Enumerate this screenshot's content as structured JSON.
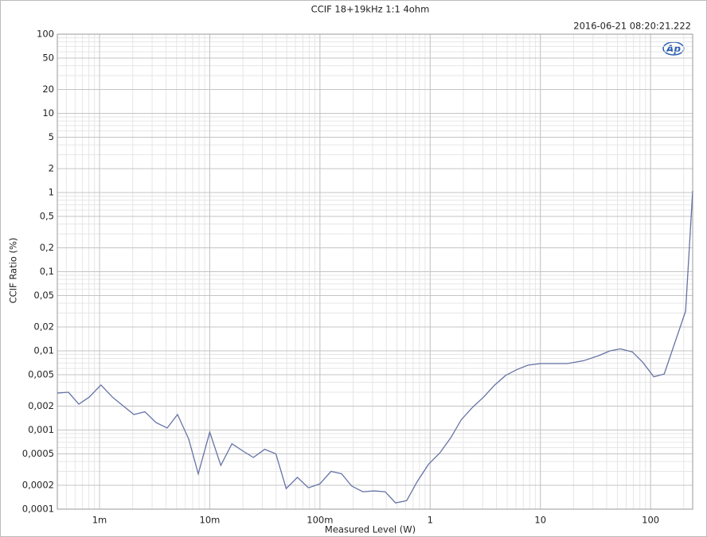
{
  "chart_data": {
    "type": "line",
    "title": "CCIF 18+19kHz 1:1 4ohm",
    "subtitle": "2016-06-21 08:20:21.222",
    "logo": "Ap",
    "x_label": "Measured Level (W)",
    "y_label": "CCIF Ratio (%)",
    "x_log": true,
    "y_log": true,
    "grid": true,
    "xlim": [
      0.000414,
      241
    ],
    "ylim": [
      0.0001,
      100
    ],
    "xticks": [
      {
        "value": 0.001,
        "label": "1m"
      },
      {
        "value": 0.01,
        "label": "10m"
      },
      {
        "value": 0.1,
        "label": "100m"
      },
      1,
      10,
      100
    ],
    "yticks": [
      100,
      50,
      20,
      10,
      5,
      2,
      1,
      {
        "value": 0.5,
        "label": "0,5"
      },
      {
        "value": 0.2,
        "label": "0,2"
      },
      {
        "value": 0.1,
        "label": "0,1"
      },
      {
        "value": 0.05,
        "label": "0,05"
      },
      {
        "value": 0.02,
        "label": "0,02"
      },
      {
        "value": 0.01,
        "label": "0,01"
      },
      {
        "value": 0.005,
        "label": "0,005"
      },
      {
        "value": 0.002,
        "label": "0,002"
      },
      {
        "value": 0.001,
        "label": "0,001"
      },
      {
        "value": 0.0005,
        "label": "0,0005"
      },
      {
        "value": 0.0002,
        "label": "0,0002"
      },
      {
        "value": 0.0001,
        "label": "0,0001"
      }
    ],
    "series": [
      {
        "color": "#6673a6",
        "x": [
          0.000414,
          0.000522,
          0.000649,
          0.000805,
          0.00103,
          0.00131,
          0.00165,
          0.00205,
          0.00258,
          0.00326,
          0.00411,
          0.0051,
          0.00644,
          0.00787,
          0.01,
          0.0126,
          0.0159,
          0.0201,
          0.0249,
          0.0315,
          0.0398,
          0.0494,
          0.0624,
          0.0787,
          0.1,
          0.126,
          0.157,
          0.194,
          0.245,
          0.31,
          0.391,
          0.485,
          0.612,
          0.766,
          0.968,
          1.22,
          1.54,
          1.91,
          2.42,
          3.05,
          3.85,
          4.85,
          6.12,
          7.72,
          10,
          12.6,
          17.6,
          24.7,
          33.9,
          42.9,
          53.2,
          68.3,
          84.7,
          107,
          133,
          208,
          241
        ],
        "values": [
          0.00293,
          0.003,
          0.00212,
          0.0026,
          0.0037,
          0.0026,
          0.002,
          0.00157,
          0.0017,
          0.00124,
          0.00106,
          0.00157,
          0.00077,
          0.00028,
          0.00094,
          0.000357,
          0.00067,
          0.00054,
          0.00045,
          0.00057,
          0.0005,
          0.000182,
          0.000252,
          0.000186,
          0.000209,
          0.0003,
          0.00028,
          0.000196,
          0.000166,
          0.00017,
          0.000166,
          0.00012,
          0.000128,
          0.000225,
          0.00037,
          0.00051,
          0.0008,
          0.00134,
          0.00193,
          0.0026,
          0.0037,
          0.0049,
          0.0058,
          0.0066,
          0.0069,
          0.0069,
          0.0069,
          0.0075,
          0.0087,
          0.01,
          0.0106,
          0.0097,
          0.0072,
          0.0047,
          0.0051,
          0.0318,
          1.05
        ]
      }
    ]
  }
}
